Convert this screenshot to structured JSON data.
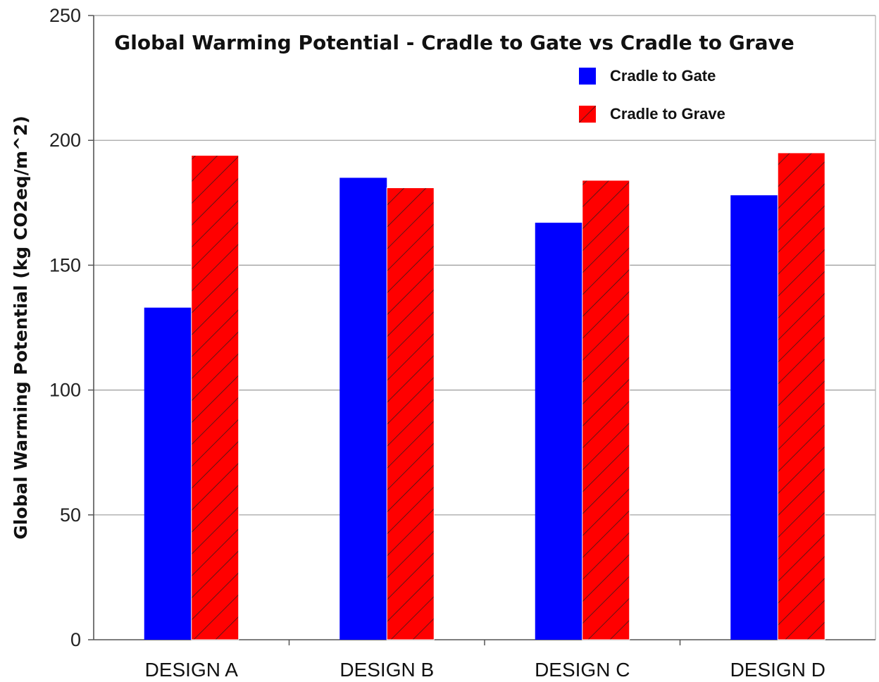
{
  "chart_data": {
    "type": "bar",
    "title": "Global Warming Potential - Cradle to Gate vs Cradle to Grave",
    "xlabel": "",
    "ylabel": "Global Warming Potential (kg CO2eq/m^2)",
    "categories": [
      "DESIGN A",
      "DESIGN B",
      "DESIGN C",
      "DESIGN D"
    ],
    "series": [
      {
        "name": "Cradle to Gate",
        "values": [
          133,
          185,
          167,
          178
        ],
        "color": "#0000ff",
        "pattern": "solid"
      },
      {
        "name": "Cradle to Grave",
        "values": [
          194,
          181,
          184,
          195
        ],
        "color": "#ff0000",
        "pattern": "hatched"
      }
    ],
    "ylim": [
      0,
      250
    ],
    "yticks": [
      "0",
      "50",
      "100",
      "150",
      "200",
      "250"
    ],
    "grid": true,
    "legend_position": "top-right"
  }
}
